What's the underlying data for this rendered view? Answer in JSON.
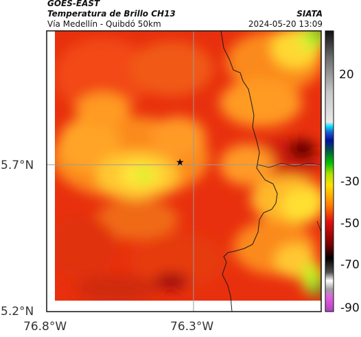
{
  "header": {
    "satellite": "GOES-EAST",
    "product": "Temperatura de Brillo CH13",
    "agency": "SIATA",
    "region": "Vía Medellín - Quibdó 50km",
    "datetime": "2024-05-20 13:09"
  },
  "map": {
    "lat_ticks": [
      "5.7°N",
      "5.2°N"
    ],
    "lon_ticks": [
      "76.8°W",
      "76.3°W"
    ],
    "marker": "star-marker"
  },
  "colorbar": {
    "ticks": [
      "20",
      "-30",
      "-50",
      "-70",
      "-90"
    ],
    "colors": {
      "purple": "#a040a0",
      "gray": "#9a9a9a",
      "black": "#000000",
      "red": "#e6320e",
      "orange": "#ff8a1e",
      "yellow": "#ffee00",
      "green": "#00d000",
      "blue": "#1020a0",
      "cyan": "#00c8e0"
    }
  }
}
